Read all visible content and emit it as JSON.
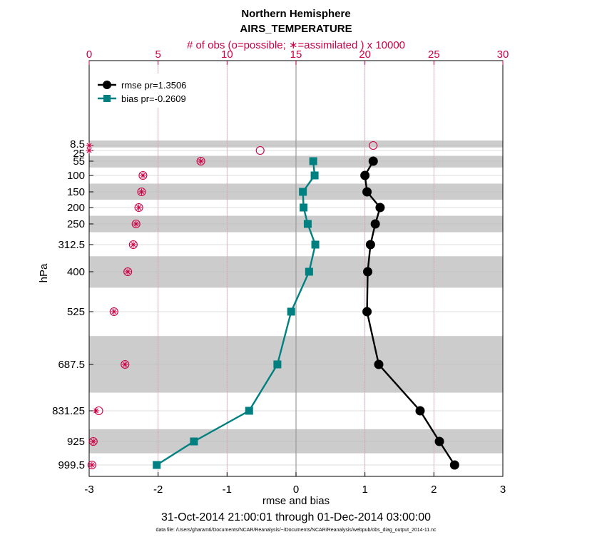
{
  "chart_data": {
    "type": "line",
    "title": "Northern Hemisphere",
    "subtitle": "AIRS_TEMPERATURE",
    "top_axis_label": "# of obs (o=possible; ∗=assimilated ) x 10000",
    "xlabel": "rmse and bias",
    "ylabel": "hPa",
    "xlim": [
      -3,
      3
    ],
    "x_ticks": [
      "-3",
      "-2",
      "-1",
      "0",
      "1",
      "2",
      "3"
    ],
    "top_xlim": [
      0,
      30
    ],
    "top_x_ticks": [
      "0",
      "5",
      "10",
      "15",
      "20",
      "25",
      "30"
    ],
    "y_tick_labels": [
      "8.5",
      "25",
      "55",
      "100",
      "150",
      "200",
      "250",
      "312.5",
      "400",
      "525",
      "687.5",
      "831.25",
      "925",
      "999.5"
    ],
    "levels": [
      8.5,
      25,
      55,
      100,
      150,
      200,
      250,
      312.5,
      400,
      525,
      687.5,
      831.25,
      925,
      999.5
    ],
    "series": [
      {
        "name": "rmse pr=1.3506",
        "color": "#000000",
        "marker": "circle",
        "levels": [
          55,
          100,
          150,
          200,
          250,
          312.5,
          400,
          525,
          687.5,
          831.25,
          925,
          999.5
        ],
        "values": [
          1.12,
          1.0,
          1.03,
          1.22,
          1.15,
          1.08,
          1.04,
          1.03,
          1.2,
          1.8,
          2.08,
          2.3
        ]
      },
      {
        "name": "bias pr=-0.2609",
        "color": "#008080",
        "marker": "square",
        "levels": [
          55,
          100,
          150,
          200,
          250,
          312.5,
          400,
          525,
          687.5,
          831.25,
          925,
          999.5
        ],
        "values": [
          0.25,
          0.27,
          0.1,
          0.11,
          0.17,
          0.28,
          0.19,
          -0.07,
          -0.27,
          -0.68,
          -1.48,
          -2.02
        ]
      }
    ],
    "obs_possible": {
      "levels": [
        8.5,
        25,
        55,
        100,
        150,
        200,
        250,
        312.5,
        400,
        525,
        687.5,
        831.25,
        925,
        999.5
      ],
      "values": [
        20.6,
        12.4,
        8.1,
        3.9,
        3.8,
        3.6,
        3.4,
        3.2,
        2.8,
        1.8,
        2.6,
        0.7,
        0.3,
        0.2
      ]
    },
    "obs_assimilated": {
      "levels": [
        8.5,
        25,
        55,
        100,
        150,
        200,
        250,
        312.5,
        400,
        525,
        687.5,
        831.25,
        925,
        999.5
      ],
      "values": [
        0.0,
        0.0,
        8.1,
        3.9,
        3.8,
        3.6,
        3.4,
        3.2,
        2.8,
        1.8,
        2.6,
        0.5,
        0.3,
        0.2
      ]
    },
    "shaded_layers": [
      [
        5,
        15
      ],
      [
        40,
        75
      ],
      [
        125,
        175
      ],
      [
        225,
        275
      ],
      [
        350,
        450
      ],
      [
        600,
        775
      ],
      [
        887.5,
        962.5
      ]
    ],
    "legend": {
      "position": "top-left",
      "entries": [
        "rmse pr=1.3506",
        "bias pr=-0.2609"
      ]
    },
    "grid": true
  },
  "footer": {
    "date_range": "31-Oct-2014 21:00:01 through 01-Dec-2014 03:00:00",
    "data_file": "data file: /Users/gharamti/Documents/NCAR/Reanalysis/~/Documents/NCAR/Reanalysis/webpub/obs_diag_output_2014-11.nc"
  },
  "colors": {
    "rmse": "#000000",
    "bias": "#008080",
    "obs": "#cc0044",
    "shade": "#cccccc"
  }
}
